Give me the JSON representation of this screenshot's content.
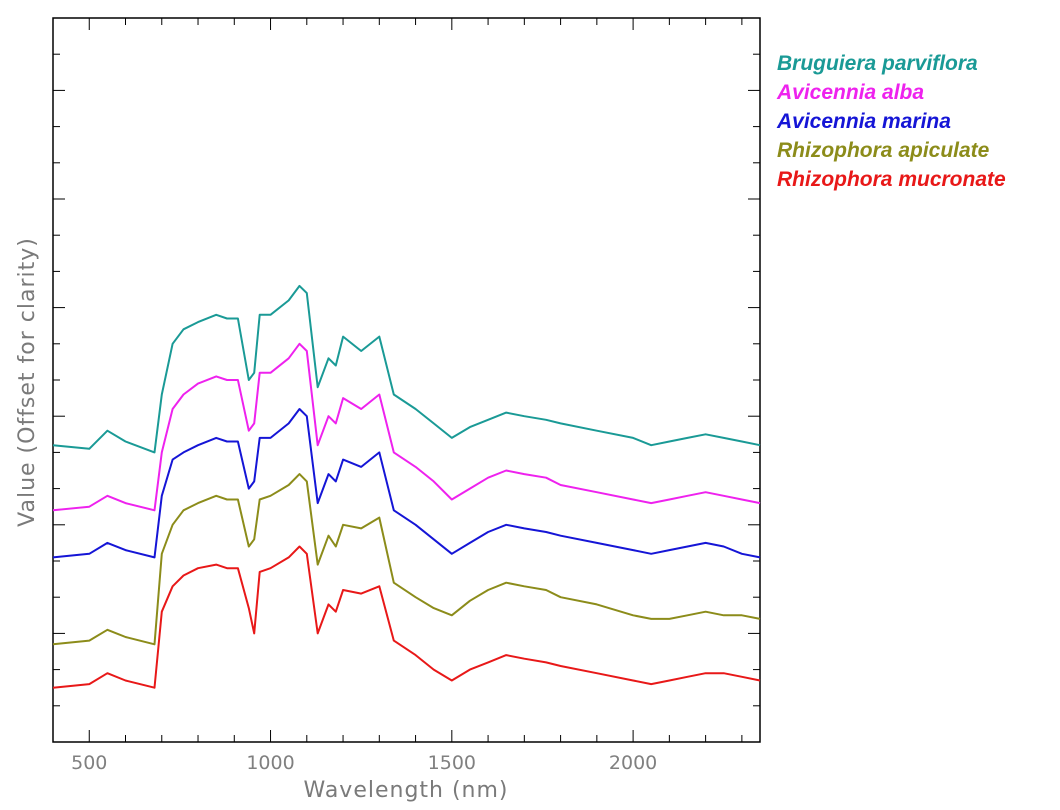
{
  "chart_data": {
    "type": "line",
    "title": "",
    "xlabel": "Wavelength (nm)",
    "ylabel": "Value (Offset for clarity)",
    "xlim": [
      400,
      2350
    ],
    "ylim": [
      0,
      10
    ],
    "x_ticks": [
      "500",
      "1000",
      "1500",
      "2000"
    ],
    "grid": false,
    "legend_position": "right",
    "x": [
      400,
      500,
      550,
      600,
      680,
      700,
      730,
      760,
      800,
      850,
      880,
      910,
      940,
      955,
      970,
      1000,
      1050,
      1080,
      1100,
      1130,
      1160,
      1180,
      1200,
      1250,
      1300,
      1340,
      1400,
      1450,
      1500,
      1550,
      1600,
      1650,
      1700,
      1760,
      1800,
      1900,
      2000,
      2050,
      2100,
      2150,
      2200,
      2250,
      2300,
      2350
    ],
    "series": [
      {
        "name": "Bruguiera parviflora",
        "color": "#1a9a96",
        "values": [
          4.1,
          4.05,
          4.3,
          4.15,
          4.0,
          4.8,
          5.5,
          5.7,
          5.8,
          5.9,
          5.85,
          5.85,
          5.0,
          5.1,
          5.9,
          5.9,
          6.1,
          6.3,
          6.2,
          4.9,
          5.3,
          5.2,
          5.6,
          5.4,
          5.6,
          4.8,
          4.6,
          4.4,
          4.2,
          4.35,
          4.45,
          4.55,
          4.5,
          4.45,
          4.4,
          4.3,
          4.2,
          4.1,
          4.15,
          4.2,
          4.25,
          4.2,
          4.15,
          4.1
        ]
      },
      {
        "name": "Avicennia alba",
        "color": "#ee22ee",
        "values": [
          3.2,
          3.25,
          3.4,
          3.3,
          3.2,
          4.0,
          4.6,
          4.8,
          4.95,
          5.05,
          5.0,
          5.0,
          4.3,
          4.4,
          5.1,
          5.1,
          5.3,
          5.5,
          5.4,
          4.1,
          4.5,
          4.4,
          4.75,
          4.6,
          4.8,
          4.0,
          3.8,
          3.6,
          3.35,
          3.5,
          3.65,
          3.75,
          3.7,
          3.65,
          3.55,
          3.45,
          3.35,
          3.3,
          3.35,
          3.4,
          3.45,
          3.4,
          3.35,
          3.3
        ]
      },
      {
        "name": "Avicennia marina",
        "color": "#1515d6",
        "values": [
          2.55,
          2.6,
          2.75,
          2.65,
          2.55,
          3.4,
          3.9,
          4.0,
          4.1,
          4.2,
          4.15,
          4.15,
          3.5,
          3.6,
          4.2,
          4.2,
          4.4,
          4.6,
          4.5,
          3.3,
          3.7,
          3.6,
          3.9,
          3.8,
          4.0,
          3.2,
          3.0,
          2.8,
          2.6,
          2.75,
          2.9,
          3.0,
          2.95,
          2.9,
          2.85,
          2.75,
          2.65,
          2.6,
          2.65,
          2.7,
          2.75,
          2.7,
          2.6,
          2.55
        ]
      },
      {
        "name": "Rhizophora apiculate",
        "color": "#8c8c1a",
        "values": [
          1.35,
          1.4,
          1.55,
          1.45,
          1.35,
          2.6,
          3.0,
          3.2,
          3.3,
          3.4,
          3.35,
          3.35,
          2.7,
          2.8,
          3.35,
          3.4,
          3.55,
          3.7,
          3.6,
          2.45,
          2.85,
          2.7,
          3.0,
          2.95,
          3.1,
          2.2,
          2.0,
          1.85,
          1.75,
          1.95,
          2.1,
          2.2,
          2.15,
          2.1,
          2.0,
          1.9,
          1.75,
          1.7,
          1.7,
          1.75,
          1.8,
          1.75,
          1.75,
          1.7
        ]
      },
      {
        "name": "Rhizophora mucronate",
        "color": "#e81818",
        "values": [
          0.75,
          0.8,
          0.95,
          0.85,
          0.75,
          1.8,
          2.15,
          2.3,
          2.4,
          2.45,
          2.4,
          2.4,
          1.85,
          1.5,
          2.35,
          2.4,
          2.55,
          2.7,
          2.6,
          1.5,
          1.9,
          1.8,
          2.1,
          2.05,
          2.15,
          1.4,
          1.2,
          1.0,
          0.85,
          1.0,
          1.1,
          1.2,
          1.15,
          1.1,
          1.05,
          0.95,
          0.85,
          0.8,
          0.85,
          0.9,
          0.95,
          0.95,
          0.9,
          0.85
        ]
      }
    ]
  }
}
